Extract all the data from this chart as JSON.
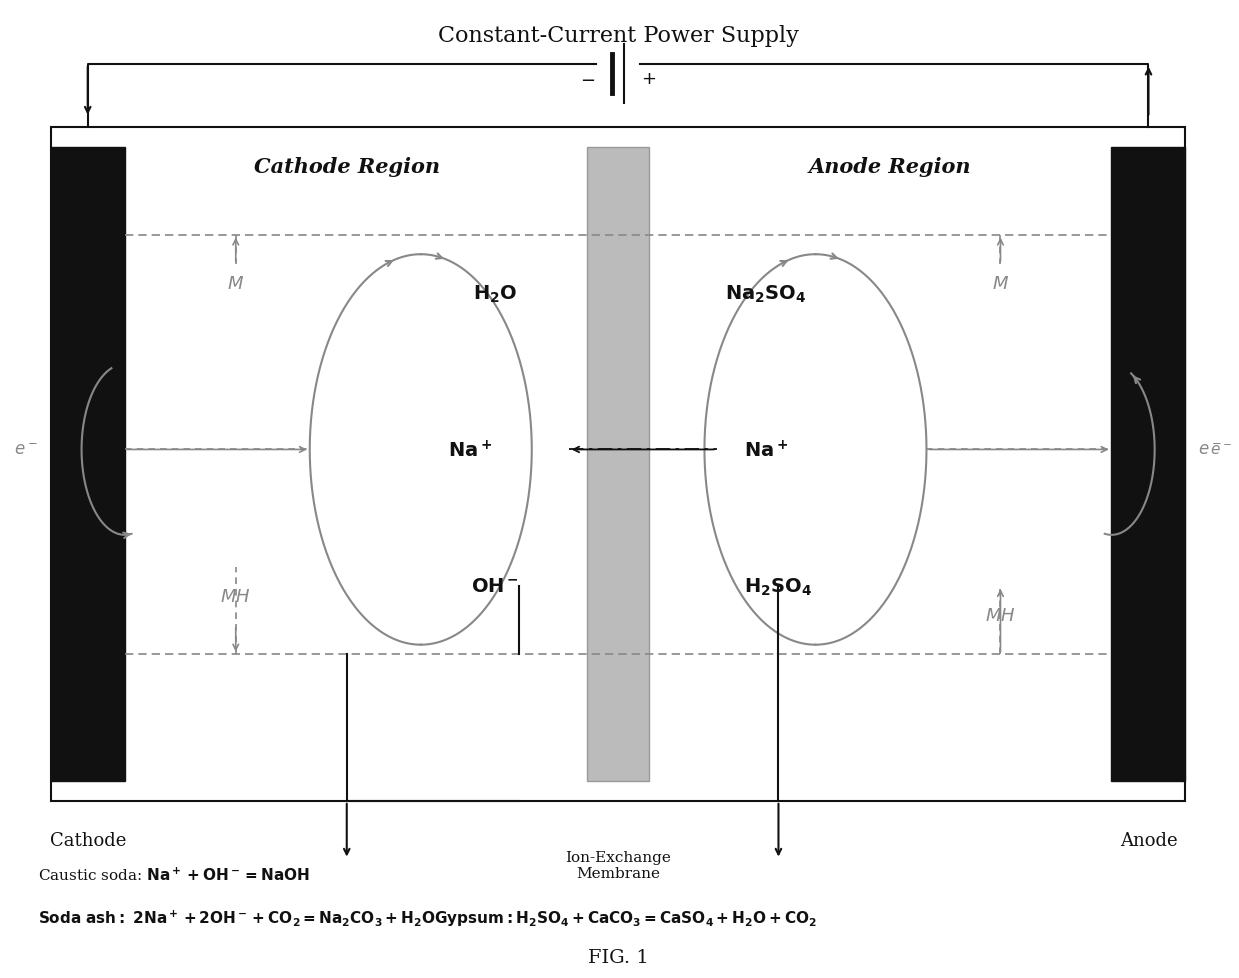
{
  "title": "Constant-Current Power Supply",
  "fig_label": "FIG. 1",
  "bg": "#ffffff",
  "cathode_region": "Cathode Region",
  "anode_region": "Anode Region",
  "cathode_lbl": "Cathode",
  "anode_lbl": "Anode",
  "membrane_lbl": "Ion-Exchange\nMembrane",
  "caustic_eq": "Caustic soda: $\\mathbf{Na^+ + OH^-=NaOH}$",
  "soda_eq": "$\\mathbf{Soda\\ ash:\\ 2Na^+ + 2OH^- + CO_2=Na_2CO_3 + H_2O}$$\\mathbf{Gypsum:H_2SO_4 + CaCO_3 = CaSO_4 + H_2O + CO_2}$",
  "gray": "#888888",
  "lgray": "#aaaaaa",
  "black": "#111111",
  "electrode_color": "#111111",
  "membrane_color": "#bbbbbb",
  "membrane_edge": "#999999"
}
